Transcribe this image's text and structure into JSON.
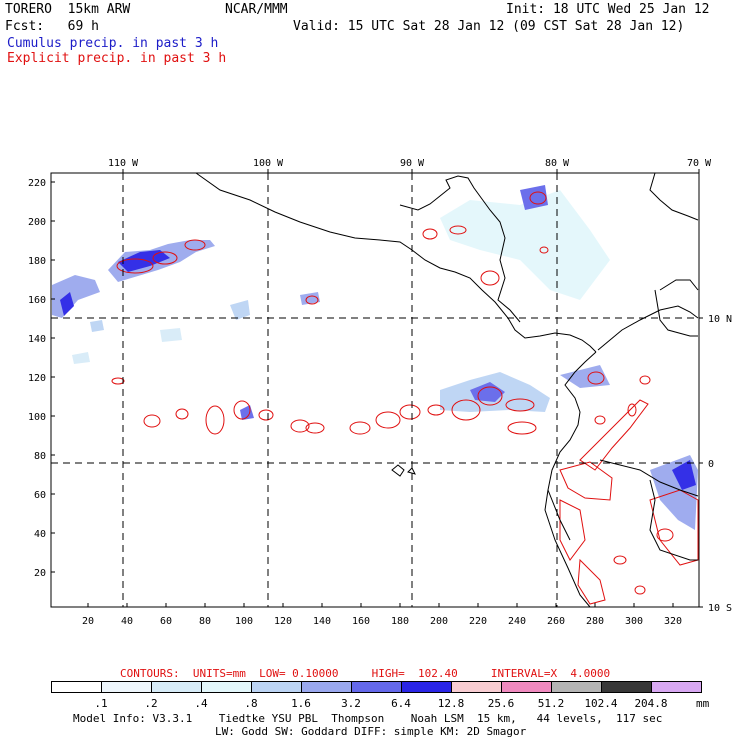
{
  "header": {
    "model": "TORERO  15km ARW",
    "org": "NCAR/MMM",
    "init": "Init: 18 UTC Wed 25 Jan 12",
    "fcst": "Fcst:   69 h",
    "valid": "Valid: 15 UTC Sat 28 Jan 12 (09 CST Sat 28 Jan 12)",
    "field1": "Cumulus precip. in past 3 h",
    "field2": "Explicit precip. in past 3 h"
  },
  "colors": {
    "cumulus": "#1c1cc8",
    "explicit": "#e01010"
  },
  "axes": {
    "top_lon": [
      "110 W",
      "100 W",
      "90 W",
      "80 W",
      "70 W"
    ],
    "right_lat": [
      "10 N",
      "0",
      "10 S"
    ],
    "left_ticks": [
      "220",
      "200",
      "180",
      "160",
      "140",
      "120",
      "100",
      "80",
      "60",
      "40",
      "20"
    ],
    "bottom_ticks": [
      "20",
      "40",
      "60",
      "80",
      "100",
      "120",
      "140",
      "160",
      "180",
      "200",
      "220",
      "240",
      "260",
      "280",
      "300",
      "320"
    ]
  },
  "contours_line": "CONTOURS:  UNITS=mm  LOW= 0.10000     HIGH=  102.40     INTERVAL=X  4.0000",
  "colorbar": {
    "labels": [
      ".1",
      ".2",
      ".4",
      ".8",
      "1.6",
      "3.2",
      "6.4",
      "12.8",
      "25.6",
      "51.2",
      "102.4",
      "204.8"
    ],
    "unit": "mm",
    "colors": [
      "#ffffff",
      "#eef6fc",
      "#d7ecf8",
      "#e3f7fb",
      "#bcd4f4",
      "#9aa8ee",
      "#6468ea",
      "#2a25e6",
      "#f8cdd2",
      "#f08abf",
      "#b4b4b4",
      "#383838",
      "#d8a8f2"
    ]
  },
  "footer": {
    "line1": "Model Info: V3.3.1    Tiedtke YSU PBL  Thompson    Noah LSM  15 km,   44 levels,  117 sec",
    "line2": "LW: Godd SW: Goddard DIFF: simple KM: 2D Smagor"
  }
}
